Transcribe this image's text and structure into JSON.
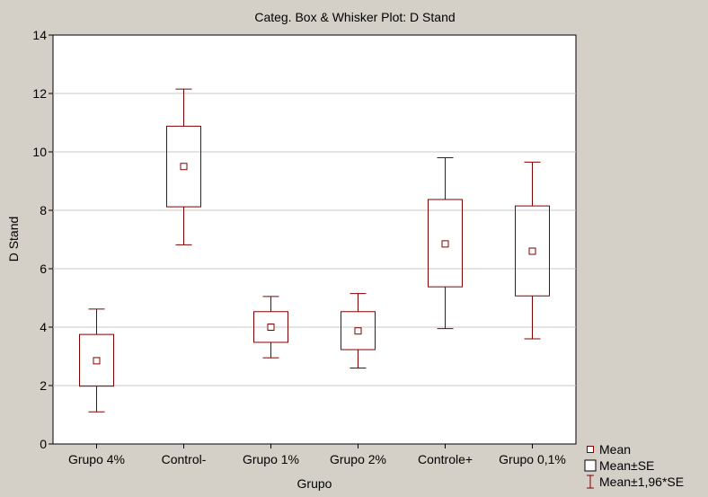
{
  "chart_data": {
    "type": "box",
    "title": "Categ. Box & Whisker Plot: D Stand",
    "xlabel": "Grupo",
    "ylabel": "D Stand",
    "ylim": [
      0,
      14
    ],
    "yticks": [
      0,
      2,
      4,
      6,
      8,
      10,
      12,
      14
    ],
    "grid": true,
    "categories": [
      "Grupo 4%",
      "Control-",
      "Grupo 1%",
      "Grupo 2%",
      "Controle+",
      "Grupo 0,1%"
    ],
    "series": [
      {
        "mean": [
          2.85,
          9.5,
          4.0,
          3.87,
          6.85,
          6.6
        ],
        "mean_minus_se": [
          1.98,
          8.12,
          3.48,
          3.23,
          5.38,
          5.07
        ],
        "mean_plus_se": [
          3.75,
          10.88,
          4.53,
          4.53,
          8.37,
          8.15
        ],
        "mean_minus_1_96_se": [
          1.1,
          6.82,
          2.95,
          2.6,
          3.95,
          3.6
        ],
        "mean_plus_1_96_se": [
          4.62,
          12.15,
          5.05,
          5.15,
          9.8,
          9.65
        ]
      }
    ],
    "legend": {
      "position": "bottom-right",
      "items": [
        "Mean",
        "Mean±SE",
        "Mean±1,96*SE"
      ]
    },
    "colors": {
      "background": "#d4d0c8",
      "plot_background": "#ffffff",
      "series": "#800000",
      "grid": "#c8c8c8"
    }
  }
}
